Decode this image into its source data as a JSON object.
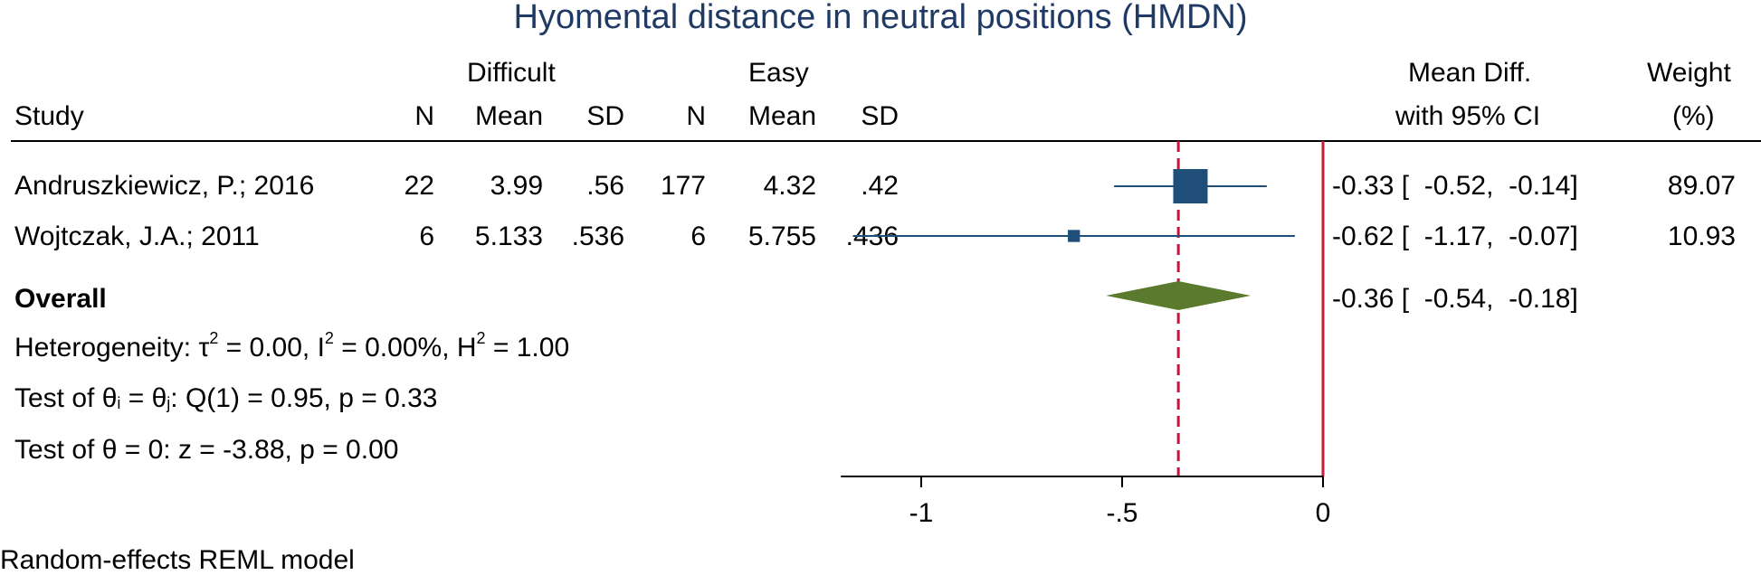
{
  "chart_data": {
    "type": "forest",
    "title": "Hyomental distance in neutral positions (HMDN)",
    "group_headers": {
      "difficult": "Difficult",
      "easy": "Easy"
    },
    "columns": {
      "study": "Study",
      "n": "N",
      "mean": "Mean",
      "sd": "SD",
      "effect_line1": "Mean Diff.",
      "effect_line2": "with 95% CI",
      "weight_line1": "Weight",
      "weight_line2": "(%)"
    },
    "studies": [
      {
        "name": "Andruszkiewicz, P.; 2016",
        "n1": "22",
        "mean1": "3.99",
        "sd1": ".56",
        "n2": "177",
        "mean2": "4.32",
        "sd2": ".42",
        "md": -0.33,
        "lo": -0.52,
        "hi": -0.14,
        "ci_text": "-0.33 [  -0.52,  -0.14]",
        "weight": "89.07"
      },
      {
        "name": "Wojtczak, J.A.; 2011",
        "n1": "6",
        "mean1": "5.133",
        "sd1": ".536",
        "n2": "6",
        "mean2": "5.755",
        "sd2": ".436",
        "md": -0.62,
        "lo": -1.17,
        "hi": -0.07,
        "ci_text": "-0.62 [  -1.17,  -0.07]",
        "weight": "10.93"
      }
    ],
    "overall": {
      "label": "Overall",
      "md": -0.36,
      "lo": -0.54,
      "hi": -0.18,
      "ci_text": "-0.36 [  -0.54,  -0.18]"
    },
    "heterogeneity": {
      "prefix": "Heterogeneity: τ",
      "sup1": "2",
      "mid1": " = 0.00, I",
      "sup2": "2",
      "mid2": " = 0.00%, H",
      "sup3": "2",
      "suffix": " = 1.00"
    },
    "test_equal": {
      "p1": "Test of θ",
      "s1": "i",
      "p2": " = θ",
      "s2": "j",
      "p3": ": Q(1) = 0.95, p = 0.33"
    },
    "test_zero": "Test of θ = 0: z = -3.88, p = 0.00",
    "x_axis": {
      "range": [
        -1.2,
        0
      ],
      "ticks": [
        -1,
        -0.5,
        0
      ],
      "tick_labels": [
        "-1",
        "-.5",
        "0"
      ]
    },
    "null_line": 0,
    "overall_line": -0.36,
    "model_note": "Random-effects REML model",
    "colors": {
      "marker": "#1f4e79",
      "diamond": "#5b7a2e",
      "null_line": "#c41e3a",
      "overall_line": "#d1103a",
      "title": "#1f3a64"
    }
  }
}
